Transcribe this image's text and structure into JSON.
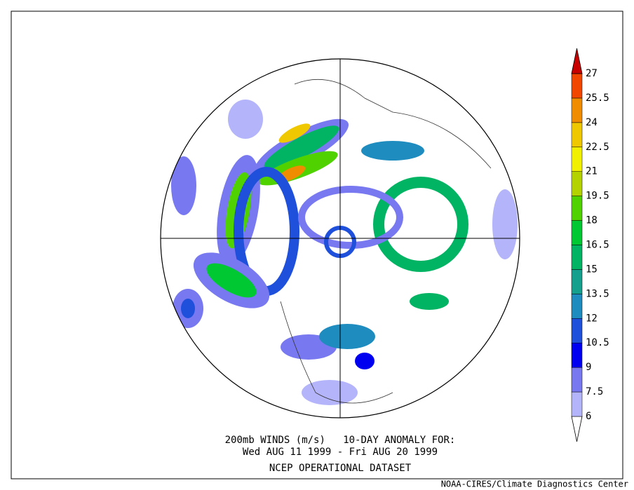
{
  "title": {
    "line1": "200mb WINDS (m/s)   10-DAY ANOMALY FOR:",
    "line2": "Wed AUG 11 1999 - Fri AUG 20 1999",
    "line3": "NCEP OPERATIONAL DATASET"
  },
  "credit": "NOAA-CIRES/Climate Diagnostics Center",
  "colorbar": {
    "levels": [
      6,
      7.5,
      9,
      10.5,
      12,
      13.5,
      15,
      16.5,
      18,
      19.5,
      21,
      22.5,
      24,
      25.5,
      27
    ],
    "colors": [
      "#ffffff",
      "#b4b4fa",
      "#7878f0",
      "#0000f0",
      "#1e50dc",
      "#1e8cbe",
      "#14a08c",
      "#00b464",
      "#00c832",
      "#50d200",
      "#b4d200",
      "#f0f000",
      "#f0c800",
      "#f08c00",
      "#f04600",
      "#c80000"
    ]
  }
}
